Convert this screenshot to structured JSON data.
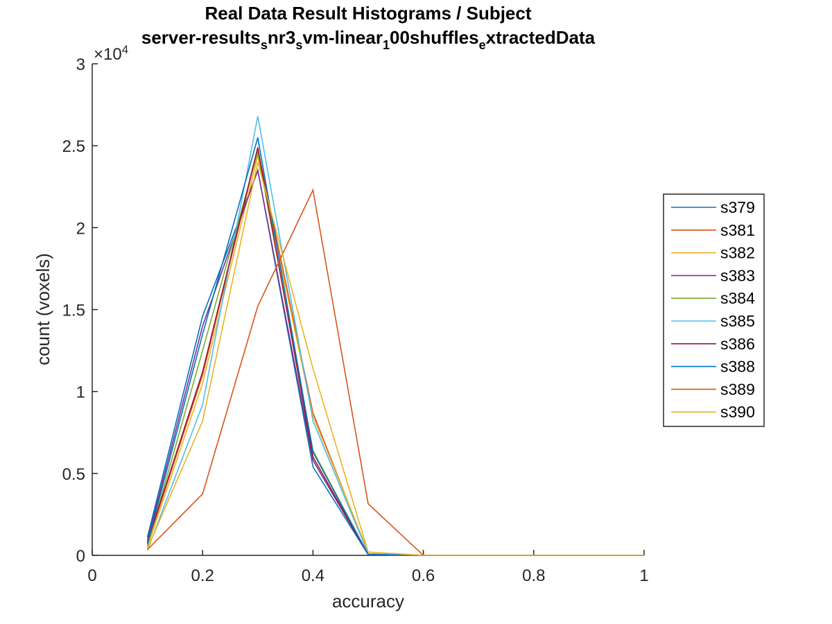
{
  "chart_data": {
    "type": "line",
    "title": "Real Data Result Histograms / Subject",
    "subtitle": {
      "parts": [
        {
          "text": "server-results",
          "sub": false
        },
        {
          "text": "s",
          "sub": true
        },
        {
          "text": "nr3",
          "sub": false
        },
        {
          "text": "s",
          "sub": true
        },
        {
          "text": "vm-linear",
          "sub": false
        },
        {
          "text": "1",
          "sub": true
        },
        {
          "text": "00shuffles",
          "sub": false
        },
        {
          "text": "e",
          "sub": true
        },
        {
          "text": "xtractedData",
          "sub": false
        }
      ]
    },
    "xlabel": "accuracy",
    "ylabel": "count (voxels)",
    "xlim": [
      0,
      1
    ],
    "ylim": [
      0,
      30000
    ],
    "y_exponent_label": "×10",
    "y_exponent_power": "4",
    "xticks": [
      0,
      0.2,
      0.4,
      0.6,
      0.8,
      1
    ],
    "xtick_labels": [
      "0",
      "0.2",
      "0.4",
      "0.6",
      "0.8",
      "1"
    ],
    "yticks": [
      0,
      5000,
      10000,
      15000,
      20000,
      25000,
      30000
    ],
    "ytick_labels": [
      "0",
      "0.5",
      "1",
      "1.5",
      "2",
      "2.5",
      "3"
    ],
    "grid": false,
    "legend_position": "right-outside",
    "x": [
      0.1,
      0.2,
      0.3,
      0.4,
      0.5,
      0.6,
      0.7,
      0.8,
      0.9,
      1.0
    ],
    "series": [
      {
        "name": "s379",
        "color": "#0072BD",
        "values": [
          1100,
          14600,
          23500,
          5400,
          50,
          0,
          0,
          0,
          0,
          0
        ]
      },
      {
        "name": "s381",
        "color": "#D95319",
        "values": [
          700,
          11000,
          24800,
          8700,
          100,
          0,
          0,
          0,
          0,
          0
        ]
      },
      {
        "name": "s382",
        "color": "#EDB120",
        "values": [
          500,
          10500,
          24400,
          8500,
          200,
          0,
          0,
          0,
          0,
          0
        ]
      },
      {
        "name": "s383",
        "color": "#7E2F8E",
        "values": [
          900,
          14000,
          23500,
          5800,
          50,
          0,
          0,
          0,
          0,
          0
        ]
      },
      {
        "name": "s384",
        "color": "#77AC30",
        "values": [
          600,
          12500,
          24600,
          6400,
          50,
          0,
          0,
          0,
          0,
          0
        ]
      },
      {
        "name": "s385",
        "color": "#4DBEEE",
        "values": [
          300,
          9200,
          26800,
          8200,
          100,
          0,
          0,
          0,
          0,
          0
        ]
      },
      {
        "name": "s386",
        "color": "#A2142F",
        "values": [
          800,
          11200,
          24900,
          6000,
          50,
          0,
          0,
          0,
          0,
          0
        ]
      },
      {
        "name": "s388",
        "color": "#0072BD",
        "values": [
          700,
          13500,
          25500,
          6300,
          50,
          0,
          0,
          0,
          0,
          0
        ]
      },
      {
        "name": "s389",
        "color": "#D95319",
        "values": [
          350,
          3750,
          15200,
          22300,
          3150,
          0,
          0,
          0,
          0,
          0
        ]
      },
      {
        "name": "s390",
        "color": "#EDB120",
        "values": [
          400,
          8200,
          24000,
          11400,
          200,
          0,
          0,
          0,
          0,
          0
        ]
      }
    ]
  }
}
